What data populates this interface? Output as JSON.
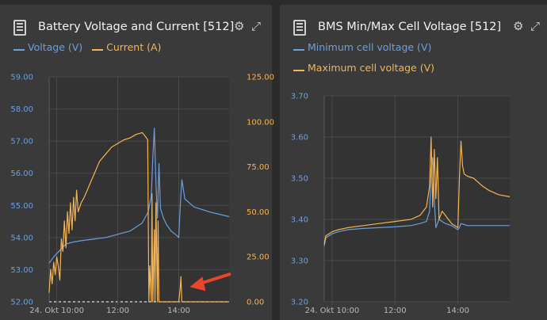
{
  "panels": [
    {
      "title": "Battery Voltage and Current [512]",
      "legend": [
        {
          "label": "Voltage (V)",
          "color": "#6d9fdc"
        },
        {
          "label": "Current (A)",
          "color": "#f5b454"
        }
      ],
      "icons": [
        "battery-icon",
        "gear-icon",
        "expand-icon"
      ]
    },
    {
      "title": "BMS Min/Max Cell Voltage [512]",
      "legend": [
        {
          "label": "Minimum cell voltage (V)",
          "color": "#6d9fdc"
        },
        {
          "label": "Maximum cell voltage (V)",
          "color": "#f5b454"
        }
      ],
      "icons": [
        "battery-icon",
        "gear-icon",
        "expand-icon"
      ]
    }
  ],
  "chart_data": [
    {
      "type": "line",
      "title": "Battery Voltage and Current [512]",
      "x_labels": [
        "24. Okt 10:00",
        "12:00",
        "14:00"
      ],
      "x_tick_hours": [
        10,
        12,
        14
      ],
      "xlim": [
        9.75,
        15.65
      ],
      "y_left": {
        "ticks": [
          "52.00",
          "53.00",
          "54.00",
          "55.00",
          "56.00",
          "57.00",
          "58.00",
          "59.00"
        ],
        "ylim": [
          52,
          59
        ]
      },
      "y_right": {
        "ticks": [
          "0.00",
          "25.00",
          "50.00",
          "75.00",
          "100.00",
          "125.00"
        ],
        "ylim": [
          0,
          125
        ]
      },
      "grid": true,
      "legend_position": "top-left",
      "series": [
        {
          "name": "Voltage (V)",
          "axis": "left",
          "color": "#6d9fdc",
          "x": [
            9.75,
            9.9,
            10.1,
            10.3,
            10.5,
            10.8,
            11.2,
            11.6,
            12.0,
            12.4,
            12.8,
            13.0,
            13.1,
            13.15,
            13.2,
            13.25,
            13.3,
            13.35,
            13.4,
            13.5,
            13.6,
            13.75,
            13.95,
            14.0,
            14.05,
            14.1,
            14.2,
            14.5,
            15.0,
            15.65
          ],
          "y": [
            53.2,
            53.4,
            53.6,
            53.8,
            53.85,
            53.9,
            53.95,
            54.0,
            54.1,
            54.2,
            54.45,
            54.8,
            55.3,
            56.5,
            57.4,
            55.7,
            54.6,
            56.3,
            54.9,
            54.6,
            54.4,
            54.2,
            54.05,
            54.0,
            55.0,
            55.8,
            55.2,
            54.95,
            54.8,
            54.65
          ]
        },
        {
          "name": "Current (A)",
          "axis": "right",
          "color": "#f5b454",
          "x": [
            9.75,
            9.8,
            9.85,
            9.9,
            9.95,
            10.0,
            10.05,
            10.1,
            10.15,
            10.2,
            10.25,
            10.3,
            10.35,
            10.4,
            10.45,
            10.5,
            10.55,
            10.6,
            10.65,
            10.7,
            10.8,
            10.9,
            11.0,
            11.1,
            11.2,
            11.4,
            11.6,
            11.8,
            12.0,
            12.2,
            12.4,
            12.6,
            12.8,
            12.9,
            12.98,
            13.02,
            13.05,
            13.1,
            13.12,
            13.15,
            13.2,
            13.22,
            13.25,
            13.3,
            13.32,
            13.35,
            13.4,
            13.6,
            13.8,
            14.0,
            14.05,
            14.07,
            14.1,
            14.5,
            15.65
          ],
          "y": [
            5,
            18,
            10,
            22,
            15,
            25,
            20,
            12,
            35,
            28,
            45,
            30,
            50,
            38,
            55,
            40,
            58,
            45,
            62,
            50,
            55,
            58,
            62,
            66,
            70,
            78,
            82,
            86,
            88,
            90,
            91,
            93,
            94,
            92,
            90,
            0,
            20,
            0,
            60,
            0,
            40,
            0,
            55,
            0,
            45,
            0,
            0,
            0,
            0,
            0,
            8,
            14,
            0,
            0,
            0
          ]
        }
      ],
      "annotation": {
        "type": "arrow",
        "target_x": 14.1,
        "target_y_right": 10,
        "color": "#e8452a"
      }
    },
    {
      "type": "line",
      "title": "BMS Min/Max Cell Voltage [512]",
      "x_labels": [
        "24. Okt 10:00",
        "12:00",
        "14:00"
      ],
      "x_tick_hours": [
        10,
        12,
        14
      ],
      "xlim": [
        9.75,
        15.65
      ],
      "y_left": {
        "ticks": [
          "3.20",
          "3.30",
          "3.40",
          "3.50",
          "3.60",
          "3.70"
        ],
        "ylim": [
          3.2,
          3.7
        ]
      },
      "grid": true,
      "legend_position": "top-left",
      "series": [
        {
          "name": "Minimum cell voltage (V)",
          "color": "#6d9fdc",
          "x": [
            9.75,
            9.8,
            9.9,
            10.0,
            10.2,
            10.5,
            11.0,
            11.5,
            12.0,
            12.5,
            12.8,
            13.0,
            13.1,
            13.15,
            13.2,
            13.25,
            13.3,
            13.4,
            13.6,
            13.8,
            14.0,
            14.05,
            14.1,
            14.3,
            14.6,
            15.0,
            15.65
          ],
          "y": [
            3.335,
            3.355,
            3.36,
            3.365,
            3.37,
            3.375,
            3.378,
            3.38,
            3.382,
            3.385,
            3.39,
            3.395,
            3.42,
            3.52,
            3.55,
            3.45,
            3.38,
            3.4,
            3.39,
            3.385,
            3.375,
            3.38,
            3.39,
            3.385,
            3.385,
            3.385,
            3.385
          ]
        },
        {
          "name": "Maximum cell voltage (V)",
          "color": "#f5b454",
          "x": [
            9.75,
            9.8,
            9.9,
            10.0,
            10.2,
            10.5,
            11.0,
            11.5,
            12.0,
            12.5,
            12.8,
            12.9,
            13.0,
            13.1,
            13.15,
            13.2,
            13.25,
            13.3,
            13.35,
            13.4,
            13.5,
            13.6,
            13.7,
            13.8,
            13.9,
            14.0,
            14.05,
            14.1,
            14.15,
            14.2,
            14.3,
            14.5,
            14.8,
            15.0,
            15.3,
            15.65
          ],
          "y": [
            3.34,
            3.36,
            3.365,
            3.37,
            3.375,
            3.38,
            3.385,
            3.39,
            3.395,
            3.4,
            3.41,
            3.42,
            3.43,
            3.48,
            3.6,
            3.43,
            3.57,
            3.45,
            3.55,
            3.4,
            3.42,
            3.41,
            3.4,
            3.39,
            3.385,
            3.38,
            3.5,
            3.59,
            3.53,
            3.51,
            3.505,
            3.5,
            3.48,
            3.47,
            3.46,
            3.455
          ]
        }
      ]
    }
  ]
}
